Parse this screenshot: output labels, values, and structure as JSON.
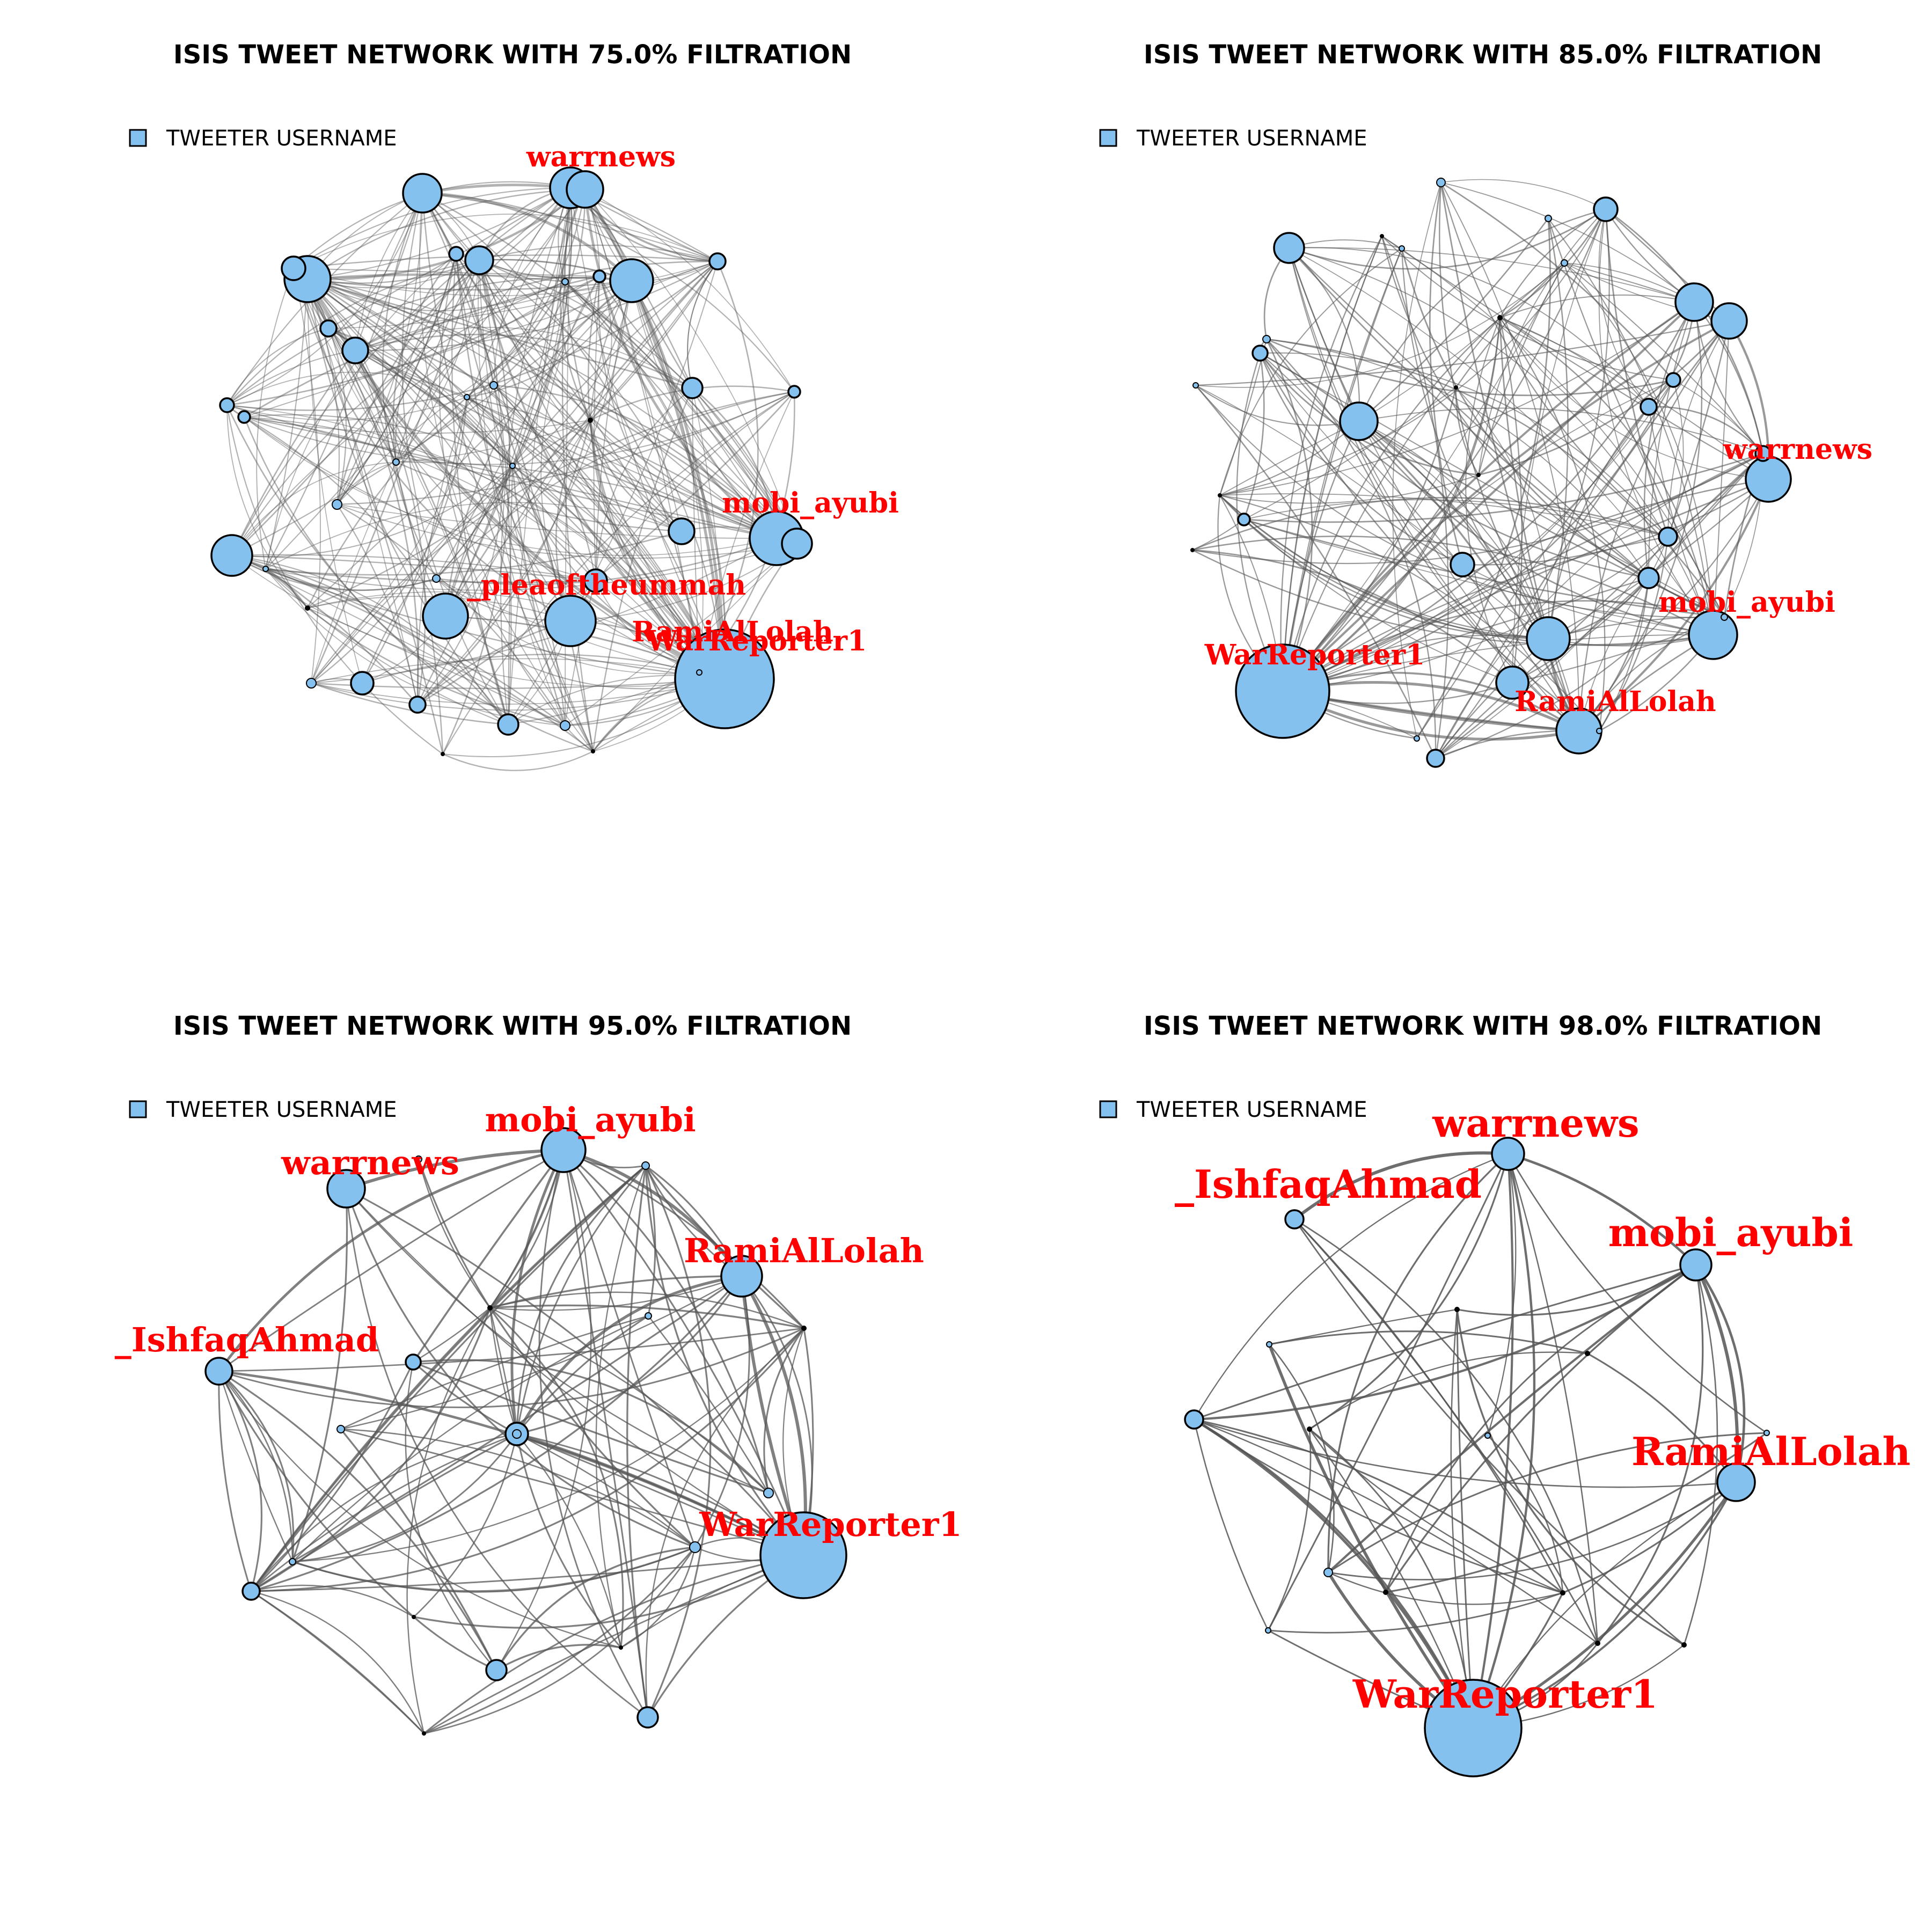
{
  "colors": {
    "node_fill": "#85c1ee",
    "node_stroke": "#000000",
    "edge": "#555555",
    "label": "#ff0000"
  },
  "panels": [
    {
      "title": "ISIS TWEET NETWORK WITH 75.0% FILTRATION",
      "legend": "TWEETER USERNAME",
      "labels": [
        "warrnews",
        "mobi_ayubi",
        "_pleaoftheummah",
        "RamiAlLolah",
        "WarReporter1"
      ]
    },
    {
      "title": "ISIS TWEET NETWORK WITH 85.0% FILTRATION",
      "legend": "TWEETER USERNAME",
      "labels": [
        "warrnews",
        "mobi_ayubi",
        "WarReporter1",
        "RamiAlLolah"
      ]
    },
    {
      "title": "ISIS TWEET NETWORK WITH 95.0% FILTRATION",
      "legend": "TWEETER USERNAME",
      "labels": [
        "mobi_ayubi",
        "warrnews",
        "RamiAlLolah",
        "_IshfaqAhmad",
        "WarReporter1"
      ]
    },
    {
      "title": "ISIS TWEET NETWORK WITH 98.0% FILTRATION",
      "legend": "TWEETER USERNAME",
      "labels": [
        "warrnews",
        "_IshfaqAhmad",
        "mobi_ayubi",
        "RamiAlLolah",
        "WarReporter1"
      ]
    }
  ]
}
